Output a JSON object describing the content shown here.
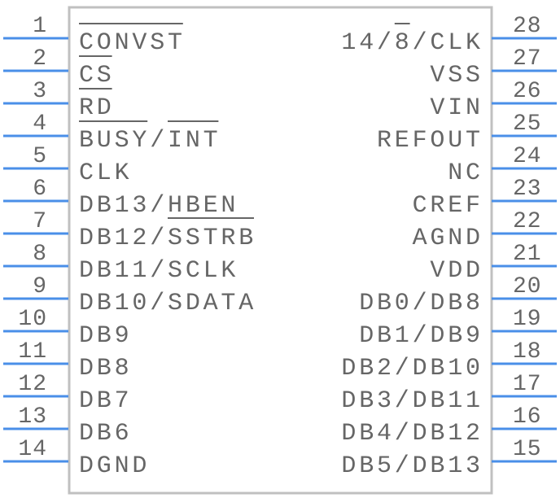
{
  "colors": {
    "pin": "#4a8fe8",
    "body": "#c0c0c0",
    "text": "#666666"
  },
  "left_pins": [
    {
      "number": "1",
      "label": "CONVST",
      "overline": [
        [
          0,
          6
        ]
      ]
    },
    {
      "number": "2",
      "label": "CS",
      "overline": [
        [
          0,
          2
        ]
      ]
    },
    {
      "number": "3",
      "label": "RD",
      "overline": [
        [
          0,
          2
        ]
      ]
    },
    {
      "number": "4",
      "label": "BUSY/INT",
      "overline": [
        [
          0,
          4
        ],
        [
          5,
          8
        ]
      ]
    },
    {
      "number": "5",
      "label": "CLK"
    },
    {
      "number": "6",
      "label": "DB13/HBEN",
      "underline": [
        [
          5,
          10
        ]
      ]
    },
    {
      "number": "7",
      "label": "DB12/SSTRB"
    },
    {
      "number": "8",
      "label": "DB11/SCLK"
    },
    {
      "number": "9",
      "label": "DB10/SDATA"
    },
    {
      "number": "10",
      "label": "DB9"
    },
    {
      "number": "11",
      "label": "DB8"
    },
    {
      "number": "12",
      "label": "DB7"
    },
    {
      "number": "13",
      "label": "DB6"
    },
    {
      "number": "14",
      "label": "DGND"
    }
  ],
  "right_pins": [
    {
      "number": "28",
      "label": "14/8/CLK",
      "overline": [
        [
          3,
          4
        ]
      ]
    },
    {
      "number": "27",
      "label": "VSS"
    },
    {
      "number": "26",
      "label": "VIN"
    },
    {
      "number": "25",
      "label": "REFOUT"
    },
    {
      "number": "24",
      "label": "NC"
    },
    {
      "number": "23",
      "label": "CREF"
    },
    {
      "number": "22",
      "label": "AGND"
    },
    {
      "number": "21",
      "label": "VDD"
    },
    {
      "number": "20",
      "label": "DB0/DB8"
    },
    {
      "number": "19",
      "label": "DB1/DB9"
    },
    {
      "number": "18",
      "label": "DB2/DB10"
    },
    {
      "number": "17",
      "label": "DB3/DB11"
    },
    {
      "number": "16",
      "label": "DB4/DB12"
    },
    {
      "number": "15",
      "label": "DB5/DB13"
    }
  ]
}
